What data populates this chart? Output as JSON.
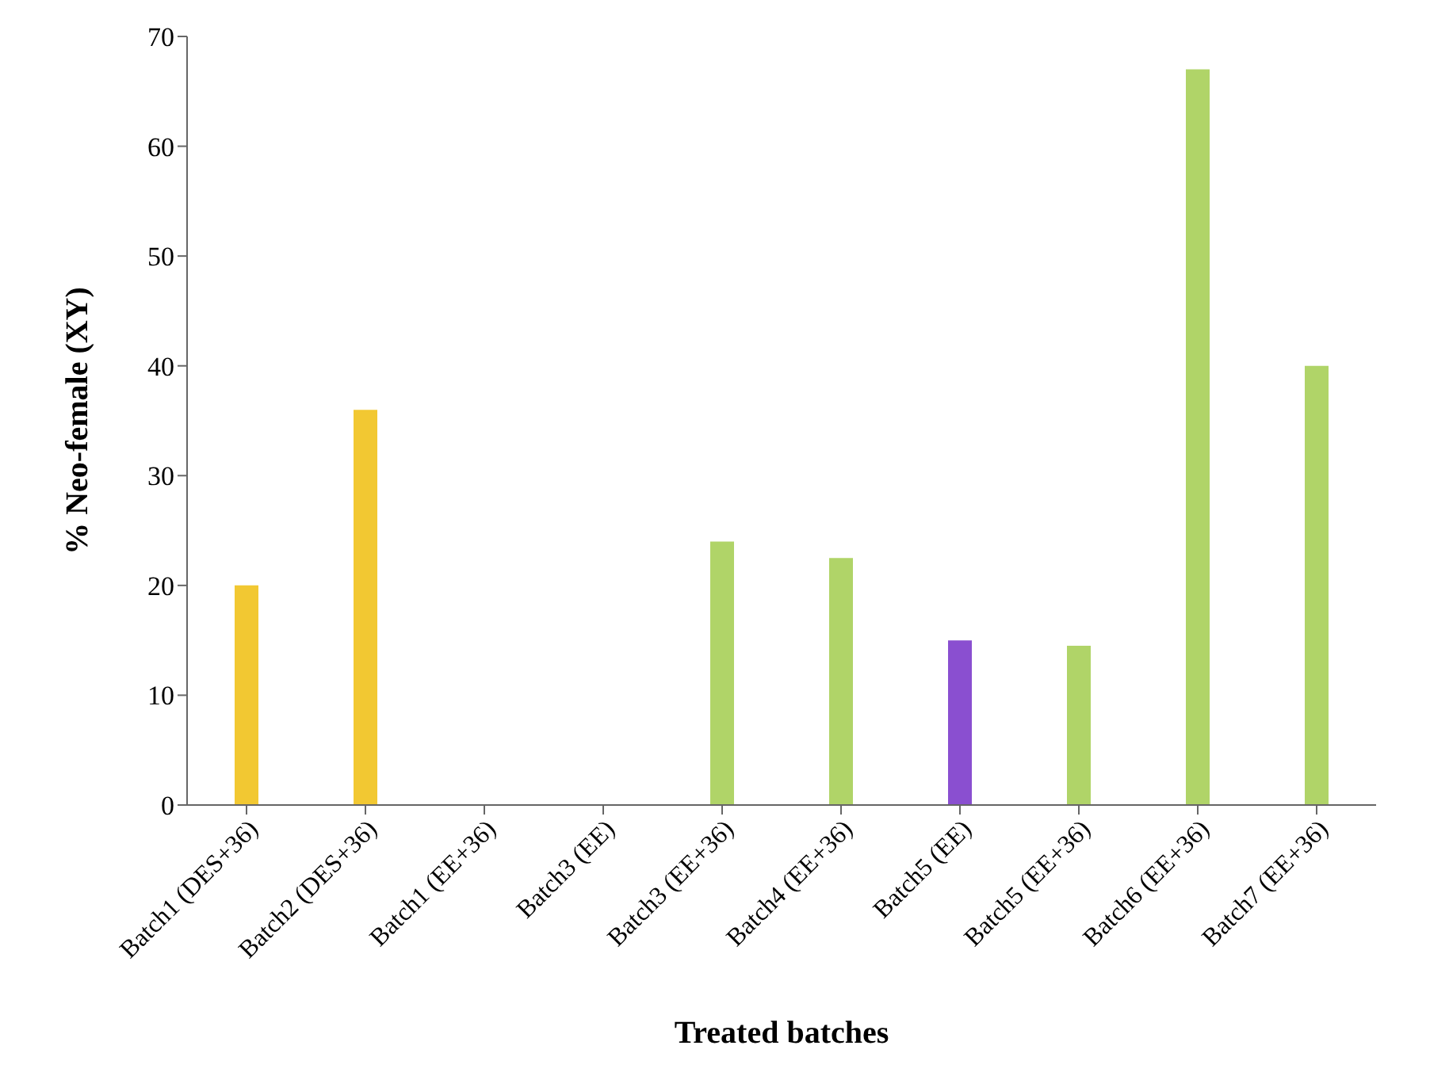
{
  "chart_data": {
    "type": "bar",
    "xlabel": "Treated batches",
    "ylabel": "% Neo-female (XY)",
    "categories": [
      "Batch1 (DES+36)",
      "Batch2 (DES+36)",
      "Batch1 (EE+36)",
      "Batch3 (EE)",
      "Batch3 (EE+36)",
      "Batch4 (EE+36)",
      "Batch5 (EE)",
      "Batch5 (EE+36)",
      "Batch6 (EE+36)",
      "Batch7 (EE+36)"
    ],
    "values": [
      20,
      36,
      0,
      0,
      24,
      22.5,
      15,
      14.5,
      67,
      40
    ],
    "colors": [
      "#f2c832",
      "#f2c832",
      "#b0d468",
      "#8a4fd0",
      "#b0d468",
      "#b0d468",
      "#8a4fd0",
      "#b0d468",
      "#b0d468",
      "#b0d468"
    ],
    "ylim": [
      0,
      70
    ],
    "yticks": [
      0,
      10,
      20,
      30,
      40,
      50,
      60,
      70
    ],
    "grid": false,
    "legend": false
  }
}
